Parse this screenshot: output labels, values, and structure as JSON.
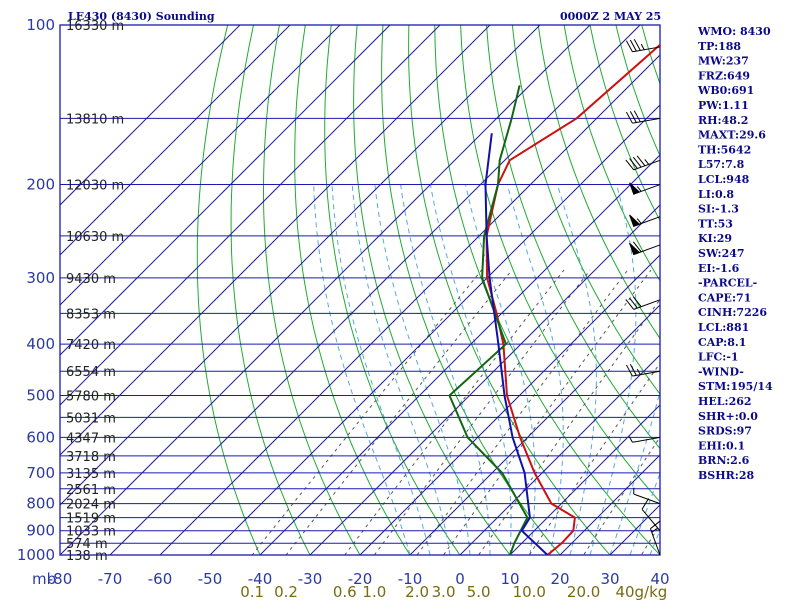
{
  "header": {
    "station": "LE430 (8430) Sounding",
    "datetime": "0000Z  2 MAY 25"
  },
  "stats": [
    "WMO: 8430",
    "TP:188",
    "MW:237",
    "FRZ:649",
    "WB0:691",
    "PW:1.11",
    "RH:48.2",
    "MAXT:29.6",
    "TH:5642",
    "L57:7.8",
    "LCL:948",
    "LI:0.8",
    "SI:-1.3",
    "TT:53",
    "KI:29",
    "SW:247",
    "EI:-1.6",
    "-PARCEL-",
    "CAPE:71",
    "CINH:7226",
    "LCL:881",
    "CAP:8.1",
    "LFC:-1",
    "-WIND-",
    "STM:195/14",
    "HEL:262",
    "SHR+:0.0",
    "SRDS:97",
    "EHI:0.1",
    "BRN:2.6",
    "BSHR:28"
  ],
  "colors": {
    "frame": "#1a1ab0",
    "isotherm": "#1a1ab0",
    "dry_adiabat": "#22aa33",
    "moist_adiabat": "#55aadd",
    "mixing_ratio": "#555555",
    "temperature": "#cc1111",
    "dewpoint": "#116611",
    "parcel": "#1111aa"
  },
  "chart_data": {
    "type": "line",
    "title": "LE430 (8430) Sounding",
    "skew_t": true,
    "y_log_scale": true,
    "ylim": [
      1000,
      100
    ],
    "xlim": [
      -80,
      40
    ],
    "xlabel_unit": "mb",
    "mixing_ratio_unit": "g/kg",
    "pressure_ticks": [
      {
        "value": 100,
        "label": "100"
      },
      {
        "value": 200,
        "label": "200"
      },
      {
        "value": 300,
        "label": "300"
      },
      {
        "value": 400,
        "label": "400"
      },
      {
        "value": 500,
        "label": "500"
      },
      {
        "value": 600,
        "label": "600"
      },
      {
        "value": 700,
        "label": "700"
      },
      {
        "value": 800,
        "label": "800"
      },
      {
        "value": 900,
        "label": "900"
      },
      {
        "value": 1000,
        "label": "1000"
      }
    ],
    "temperature_ticks": [
      {
        "value": -80,
        "label": "-80"
      },
      {
        "value": -70,
        "label": "-70"
      },
      {
        "value": -60,
        "label": "-60"
      },
      {
        "value": -50,
        "label": "-50"
      },
      {
        "value": -40,
        "label": "-40"
      },
      {
        "value": -30,
        "label": "-30"
      },
      {
        "value": -20,
        "label": "-20"
      },
      {
        "value": -10,
        "label": "-10"
      },
      {
        "value": 0,
        "label": "0"
      },
      {
        "value": 10,
        "label": "10"
      },
      {
        "value": 20,
        "label": "20"
      },
      {
        "value": 30,
        "label": "30"
      },
      {
        "value": 40,
        "label": "40"
      }
    ],
    "mixing_ratio_ticks": [
      {
        "value": 0.1,
        "label": "0.1"
      },
      {
        "value": 0.2,
        "label": "0.2"
      },
      {
        "value": 0.6,
        "label": "0.6"
      },
      {
        "value": 1.0,
        "label": "1.0"
      },
      {
        "value": 2.0,
        "label": "2.0"
      },
      {
        "value": 3.0,
        "label": "3.0"
      },
      {
        "value": 5.0,
        "label": "5.0"
      },
      {
        "value": 10.0,
        "label": "10.0"
      },
      {
        "value": 20.0,
        "label": "20.0"
      },
      {
        "value": 40.0,
        "label": "40g/kg"
      }
    ],
    "height_labels": [
      {
        "p": 1000,
        "label": "138 m"
      },
      {
        "p": 950,
        "label": "574 m"
      },
      {
        "p": 900,
        "label": "1033 m"
      },
      {
        "p": 850,
        "label": "1519 m"
      },
      {
        "p": 800,
        "label": "2024 m"
      },
      {
        "p": 750,
        "label": "2561 m"
      },
      {
        "p": 700,
        "label": "3135 m"
      },
      {
        "p": 650,
        "label": "3718 m"
      },
      {
        "p": 600,
        "label": "4347 m"
      },
      {
        "p": 550,
        "label": "5031 m"
      },
      {
        "p": 500,
        "label": "5780 m"
      },
      {
        "p": 450,
        "label": "6554 m"
      },
      {
        "p": 400,
        "label": "7420 m"
      },
      {
        "p": 350,
        "label": "8353 m"
      },
      {
        "p": 300,
        "label": "9430 m"
      },
      {
        "p": 250,
        "label": "10630 m"
      },
      {
        "p": 200,
        "label": "12030 m"
      },
      {
        "p": 150,
        "label": "13810 m"
      },
      {
        "p": 100,
        "label": "16330 m"
      }
    ],
    "series": [
      {
        "key": "temperature",
        "points": [
          {
            "p": 1000,
            "t": 17.5
          },
          {
            "p": 950,
            "t": 18.0
          },
          {
            "p": 900,
            "t": 17.8
          },
          {
            "p": 850,
            "t": 15.5
          },
          {
            "p": 800,
            "t": 8.0
          },
          {
            "p": 700,
            "t": -1.5
          },
          {
            "p": 600,
            "t": -11.5
          },
          {
            "p": 500,
            "t": -22.5
          },
          {
            "p": 400,
            "t": -33.5
          },
          {
            "p": 350,
            "t": -41.0
          },
          {
            "p": 300,
            "t": -50.0
          },
          {
            "p": 250,
            "t": -58.5
          },
          {
            "p": 200,
            "t": -66.5
          },
          {
            "p": 180,
            "t": -69.0
          },
          {
            "p": 150,
            "t": -64.0
          },
          {
            "p": 100,
            "t": -61.5
          }
        ]
      },
      {
        "key": "dewpoint",
        "points": [
          {
            "p": 1000,
            "t": 10.0
          },
          {
            "p": 950,
            "t": 8.5
          },
          {
            "p": 850,
            "t": 6.0
          },
          {
            "p": 700,
            "t": -8.0
          },
          {
            "p": 600,
            "t": -22.0
          },
          {
            "p": 500,
            "t": -34.0
          },
          {
            "p": 400,
            "t": -33.0
          },
          {
            "p": 300,
            "t": -51.0
          },
          {
            "p": 250,
            "t": -59.0
          },
          {
            "p": 200,
            "t": -66.5
          },
          {
            "p": 180,
            "t": -71.0
          },
          {
            "p": 150,
            "t": -77.0
          },
          {
            "p": 130,
            "t": -82.0
          }
        ]
      },
      {
        "key": "parcel",
        "points": [
          {
            "p": 1000,
            "t": 17.5
          },
          {
            "p": 900,
            "t": 7.5
          },
          {
            "p": 850,
            "t": 6.5
          },
          {
            "p": 700,
            "t": -3.5
          },
          {
            "p": 600,
            "t": -13.0
          },
          {
            "p": 500,
            "t": -23.0
          },
          {
            "p": 400,
            "t": -34.5
          },
          {
            "p": 300,
            "t": -49.5
          },
          {
            "p": 250,
            "t": -58.5
          },
          {
            "p": 200,
            "t": -69.0
          },
          {
            "p": 160,
            "t": -78.0
          }
        ]
      }
    ],
    "wind_barbs": [
      {
        "p": 1000,
        "dir": 340,
        "spd": 15
      },
      {
        "p": 900,
        "dir": 320,
        "spd": 10
      },
      {
        "p": 800,
        "dir": 290,
        "spd": 5
      },
      {
        "p": 600,
        "dir": 260,
        "spd": 5
      },
      {
        "p": 450,
        "dir": 260,
        "spd": 25
      },
      {
        "p": 330,
        "dir": 250,
        "spd": 30
      },
      {
        "p": 260,
        "dir": 250,
        "spd": 60
      },
      {
        "p": 230,
        "dir": 250,
        "spd": 55
      },
      {
        "p": 200,
        "dir": 250,
        "spd": 55
      },
      {
        "p": 180,
        "dir": 250,
        "spd": 45
      },
      {
        "p": 150,
        "dir": 260,
        "spd": 30
      },
      {
        "p": 110,
        "dir": 260,
        "spd": 35
      }
    ]
  }
}
